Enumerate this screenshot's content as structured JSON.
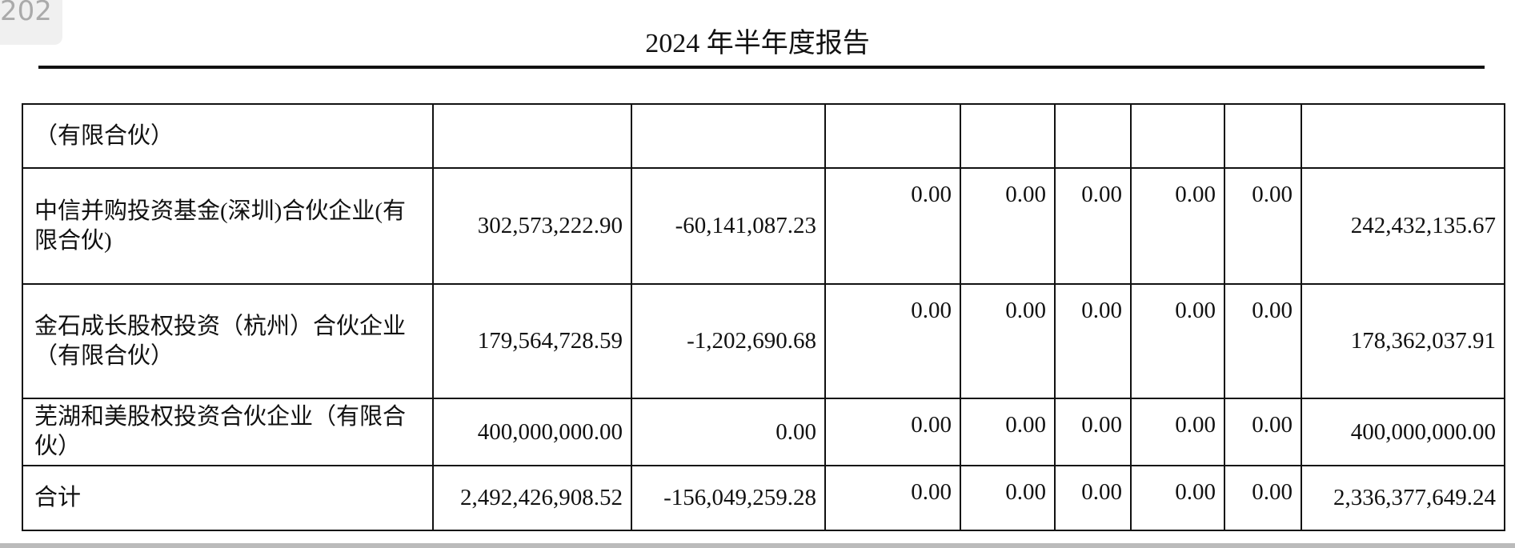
{
  "header": {
    "badge": "202",
    "title": "2024 年半年度报告"
  },
  "table": {
    "rows": [
      {
        "name": "（有限合伙）",
        "values": []
      },
      {
        "name": "中信并购投资基金(深圳)合伙企业(有限合伙)",
        "values": [
          "302,573,222.90",
          "-60,141,087.23",
          "0.00",
          "0.00",
          "0.00",
          "0.00",
          "0.00",
          "242,432,135.67"
        ]
      },
      {
        "name": "金石成长股权投资（杭州）合伙企业（有限合伙）",
        "values": [
          "179,564,728.59",
          "-1,202,690.68",
          "0.00",
          "0.00",
          "0.00",
          "0.00",
          "0.00",
          "178,362,037.91"
        ]
      },
      {
        "name": "芜湖和美股权投资合伙企业（有限合伙）",
        "values": [
          "400,000,000.00",
          "0.00",
          "0.00",
          "0.00",
          "0.00",
          "0.00",
          "0.00",
          "400,000,000.00"
        ]
      },
      {
        "name": "合计",
        "values": [
          "2,492,426,908.52",
          "-156,049,259.28",
          "0.00",
          "0.00",
          "0.00",
          "0.00",
          "0.00",
          "2,336,377,649.24"
        ]
      }
    ]
  }
}
